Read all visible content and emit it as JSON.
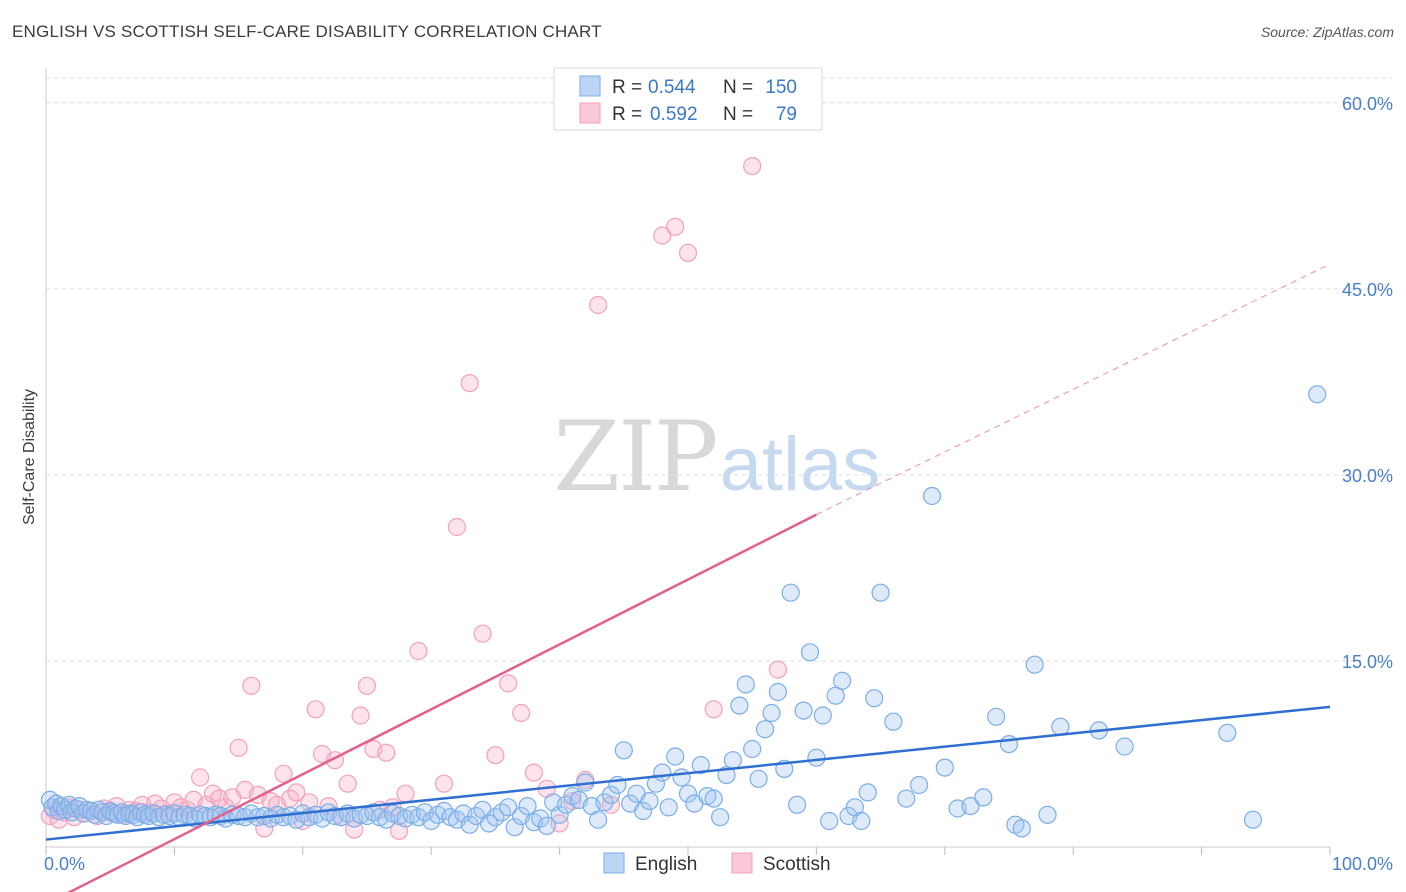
{
  "title": "ENGLISH VS SCOTTISH SELF-CARE DISABILITY CORRELATION CHART",
  "source": "Source: ZipAtlas.com",
  "watermark": {
    "zip": "ZIP",
    "atlas": "atlas"
  },
  "chart_data": {
    "type": "scatter",
    "ylabel": "Self-Care Disability",
    "xlim": [
      0,
      100
    ],
    "ylim": [
      0,
      62
    ],
    "x_tick_labels": [
      "0.0%",
      "100.0%"
    ],
    "y_ticks": [
      15,
      30,
      45,
      60
    ],
    "y_tick_labels": [
      "15.0%",
      "30.0%",
      "45.0%",
      "60.0%"
    ],
    "grid": true,
    "legend_position": "top-center",
    "stats": [
      {
        "r_label": "R =",
        "r": "0.544",
        "n_label": "N =",
        "n": "150"
      },
      {
        "r_label": "R =",
        "r": "0.592",
        "n_label": "N =",
        "n": "79"
      }
    ],
    "series": [
      {
        "name": "English",
        "color": "#7aaee8",
        "trend_color": "#2f6fd1",
        "trend": {
          "x0": 0,
          "y0": 0.6,
          "x1": 100,
          "y1": 11.3
        },
        "points": [
          [
            0.3,
            3.8
          ],
          [
            0.5,
            3.2
          ],
          [
            0.8,
            3.5
          ],
          [
            1.0,
            2.9
          ],
          [
            1.2,
            3.3
          ],
          [
            1.5,
            3.0
          ],
          [
            1.8,
            3.4
          ],
          [
            2.0,
            2.8
          ],
          [
            2.3,
            3.1
          ],
          [
            2.6,
            3.3
          ],
          [
            2.9,
            2.7
          ],
          [
            3.2,
            3.0
          ],
          [
            3.5,
            2.9
          ],
          [
            3.8,
            2.6
          ],
          [
            4.1,
            3.0
          ],
          [
            4.4,
            2.8
          ],
          [
            4.7,
            2.5
          ],
          [
            5.0,
            2.9
          ],
          [
            5.3,
            2.7
          ],
          [
            5.6,
            2.6
          ],
          [
            5.9,
            2.8
          ],
          [
            6.2,
            2.5
          ],
          [
            6.5,
            2.7
          ],
          [
            6.8,
            2.6
          ],
          [
            7.1,
            2.4
          ],
          [
            7.4,
            2.8
          ],
          [
            7.7,
            2.6
          ],
          [
            8.0,
            2.5
          ],
          [
            8.4,
            2.7
          ],
          [
            8.8,
            2.4
          ],
          [
            9.2,
            2.6
          ],
          [
            9.6,
            2.5
          ],
          [
            10.0,
            2.7
          ],
          [
            10.4,
            2.4
          ],
          [
            10.8,
            2.6
          ],
          [
            11.2,
            2.5
          ],
          [
            11.6,
            2.3
          ],
          [
            12.0,
            2.6
          ],
          [
            12.4,
            2.5
          ],
          [
            12.8,
            2.4
          ],
          [
            13.2,
            2.6
          ],
          [
            13.6,
            2.5
          ],
          [
            14.0,
            2.3
          ],
          [
            14.5,
            2.6
          ],
          [
            15.0,
            2.5
          ],
          [
            15.5,
            2.4
          ],
          [
            16.0,
            2.7
          ],
          [
            16.5,
            2.4
          ],
          [
            17.0,
            2.5
          ],
          [
            17.5,
            2.3
          ],
          [
            18.0,
            2.6
          ],
          [
            18.5,
            2.4
          ],
          [
            19.0,
            2.5
          ],
          [
            19.5,
            2.2
          ],
          [
            20.0,
            2.7
          ],
          [
            20.5,
            2.4
          ],
          [
            21.0,
            2.6
          ],
          [
            21.5,
            2.3
          ],
          [
            22.0,
            2.8
          ],
          [
            22.5,
            2.5
          ],
          [
            23.0,
            2.4
          ],
          [
            23.5,
            2.7
          ],
          [
            24.0,
            2.3
          ],
          [
            24.5,
            2.6
          ],
          [
            25.0,
            2.5
          ],
          [
            25.5,
            2.8
          ],
          [
            26.0,
            2.4
          ],
          [
            26.5,
            2.2
          ],
          [
            27.0,
            2.7
          ],
          [
            27.5,
            2.5
          ],
          [
            28.0,
            2.3
          ],
          [
            28.5,
            2.6
          ],
          [
            29.0,
            2.4
          ],
          [
            29.5,
            2.8
          ],
          [
            30.0,
            2.1
          ],
          [
            30.5,
            2.6
          ],
          [
            31.0,
            2.9
          ],
          [
            31.5,
            2.4
          ],
          [
            32.0,
            2.2
          ],
          [
            32.5,
            2.7
          ],
          [
            33.0,
            1.8
          ],
          [
            33.5,
            2.5
          ],
          [
            34.0,
            3.0
          ],
          [
            34.5,
            1.9
          ],
          [
            35.0,
            2.4
          ],
          [
            35.5,
            2.8
          ],
          [
            36.0,
            3.2
          ],
          [
            36.5,
            1.6
          ],
          [
            37.0,
            2.5
          ],
          [
            37.5,
            3.3
          ],
          [
            38.0,
            2.0
          ],
          [
            38.5,
            2.3
          ],
          [
            39.0,
            1.7
          ],
          [
            39.5,
            3.6
          ],
          [
            40.0,
            2.6
          ],
          [
            40.5,
            3.4
          ],
          [
            41.0,
            4.1
          ],
          [
            41.5,
            3.8
          ],
          [
            42.0,
            5.2
          ],
          [
            42.5,
            3.3
          ],
          [
            43.0,
            2.2
          ],
          [
            43.5,
            3.6
          ],
          [
            44.0,
            4.2
          ],
          [
            44.5,
            5.0
          ],
          [
            45.0,
            7.8
          ],
          [
            45.5,
            3.5
          ],
          [
            46.0,
            4.3
          ],
          [
            46.5,
            2.9
          ],
          [
            47.0,
            3.7
          ],
          [
            47.5,
            5.1
          ],
          [
            48.0,
            6.0
          ],
          [
            48.5,
            3.2
          ],
          [
            49.0,
            7.3
          ],
          [
            49.5,
            5.6
          ],
          [
            50.0,
            4.3
          ],
          [
            50.5,
            3.5
          ],
          [
            51.0,
            6.6
          ],
          [
            51.5,
            4.1
          ],
          [
            52.0,
            3.9
          ],
          [
            52.5,
            2.4
          ],
          [
            53.0,
            5.8
          ],
          [
            53.5,
            7.0
          ],
          [
            54.0,
            11.4
          ],
          [
            54.5,
            13.1
          ],
          [
            55.0,
            7.9
          ],
          [
            55.5,
            5.5
          ],
          [
            56.0,
            9.5
          ],
          [
            56.5,
            10.8
          ],
          [
            57.0,
            12.5
          ],
          [
            57.5,
            6.3
          ],
          [
            58.0,
            20.5
          ],
          [
            58.5,
            3.4
          ],
          [
            59.0,
            11.0
          ],
          [
            59.5,
            15.7
          ],
          [
            60.0,
            7.2
          ],
          [
            60.5,
            10.6
          ],
          [
            61.0,
            2.1
          ],
          [
            61.5,
            12.2
          ],
          [
            62.0,
            13.4
          ],
          [
            62.5,
            2.5
          ],
          [
            63.0,
            3.2
          ],
          [
            63.5,
            2.1
          ],
          [
            64.0,
            4.4
          ],
          [
            64.5,
            12.0
          ],
          [
            65.0,
            20.5
          ],
          [
            66.0,
            10.1
          ],
          [
            67.0,
            3.9
          ],
          [
            68.0,
            5.0
          ],
          [
            69.0,
            28.3
          ],
          [
            70.0,
            6.4
          ],
          [
            71.0,
            3.1
          ],
          [
            72.0,
            3.3
          ],
          [
            73.0,
            4.0
          ],
          [
            74.0,
            10.5
          ],
          [
            75.0,
            8.3
          ],
          [
            75.5,
            1.8
          ],
          [
            76.0,
            1.5
          ],
          [
            77.0,
            14.7
          ],
          [
            78.0,
            2.6
          ],
          [
            79.0,
            9.7
          ],
          [
            82.0,
            9.4
          ],
          [
            84.0,
            8.1
          ],
          [
            92.0,
            9.2
          ],
          [
            94.0,
            2.2
          ],
          [
            99.0,
            36.5
          ]
        ]
      },
      {
        "name": "Scottish",
        "color": "#f4a0bc",
        "trend_color": "#e2608b",
        "trend": {
          "x0": 0,
          "y0": -4.6,
          "x1": 60,
          "y1": 26.8
        },
        "trend_ext": {
          "x0": 60,
          "y0": 26.8,
          "x1": 100,
          "y1": 47.0
        },
        "points": [
          [
            0.3,
            2.5
          ],
          [
            0.6,
            3.0
          ],
          [
            1.0,
            2.2
          ],
          [
            1.4,
            2.8
          ],
          [
            1.8,
            3.2
          ],
          [
            2.2,
            2.4
          ],
          [
            2.6,
            3.0
          ],
          [
            3.0,
            2.7
          ],
          [
            3.5,
            2.9
          ],
          [
            4.0,
            2.5
          ],
          [
            4.5,
            3.1
          ],
          [
            5.0,
            2.8
          ],
          [
            5.5,
            3.3
          ],
          [
            6.0,
            2.6
          ],
          [
            6.5,
            3.0
          ],
          [
            7.0,
            2.9
          ],
          [
            7.5,
            3.4
          ],
          [
            8.0,
            2.8
          ],
          [
            8.5,
            3.5
          ],
          [
            9.0,
            3.1
          ],
          [
            9.5,
            2.7
          ],
          [
            10.0,
            3.6
          ],
          [
            10.5,
            3.2
          ],
          [
            11.0,
            3.0
          ],
          [
            11.5,
            3.8
          ],
          [
            12.0,
            5.6
          ],
          [
            12.5,
            3.4
          ],
          [
            13.0,
            4.3
          ],
          [
            13.5,
            3.9
          ],
          [
            14.0,
            3.2
          ],
          [
            14.5,
            4.0
          ],
          [
            15.0,
            8.0
          ],
          [
            15.5,
            4.6
          ],
          [
            16.0,
            13.0
          ],
          [
            16.5,
            4.2
          ],
          [
            17.0,
            1.5
          ],
          [
            17.5,
            3.7
          ],
          [
            18.0,
            3.4
          ],
          [
            18.5,
            5.9
          ],
          [
            19.0,
            3.9
          ],
          [
            19.5,
            4.4
          ],
          [
            20.0,
            2.1
          ],
          [
            20.5,
            3.6
          ],
          [
            21.0,
            11.1
          ],
          [
            21.5,
            7.5
          ],
          [
            22.0,
            3.3
          ],
          [
            22.5,
            7.0
          ],
          [
            23.0,
            2.4
          ],
          [
            23.5,
            5.1
          ],
          [
            24.0,
            1.4
          ],
          [
            24.5,
            10.6
          ],
          [
            25.0,
            13.0
          ],
          [
            25.5,
            7.9
          ],
          [
            26.0,
            3.0
          ],
          [
            26.5,
            7.6
          ],
          [
            27.0,
            3.2
          ],
          [
            27.5,
            1.3
          ],
          [
            28.0,
            4.3
          ],
          [
            29.0,
            15.8
          ],
          [
            31.0,
            5.1
          ],
          [
            32.0,
            25.8
          ],
          [
            33.0,
            37.4
          ],
          [
            34.0,
            17.2
          ],
          [
            35.0,
            7.4
          ],
          [
            36.0,
            13.2
          ],
          [
            37.0,
            10.8
          ],
          [
            38.0,
            6.0
          ],
          [
            39.0,
            4.7
          ],
          [
            40.0,
            1.9
          ],
          [
            41.0,
            3.7
          ],
          [
            42.0,
            5.4
          ],
          [
            43.0,
            43.7
          ],
          [
            44.0,
            3.4
          ],
          [
            48.0,
            49.3
          ],
          [
            49.0,
            50.0
          ],
          [
            50.0,
            47.9
          ],
          [
            52.0,
            11.1
          ],
          [
            55.0,
            54.9
          ],
          [
            57.0,
            14.3
          ]
        ]
      }
    ]
  }
}
